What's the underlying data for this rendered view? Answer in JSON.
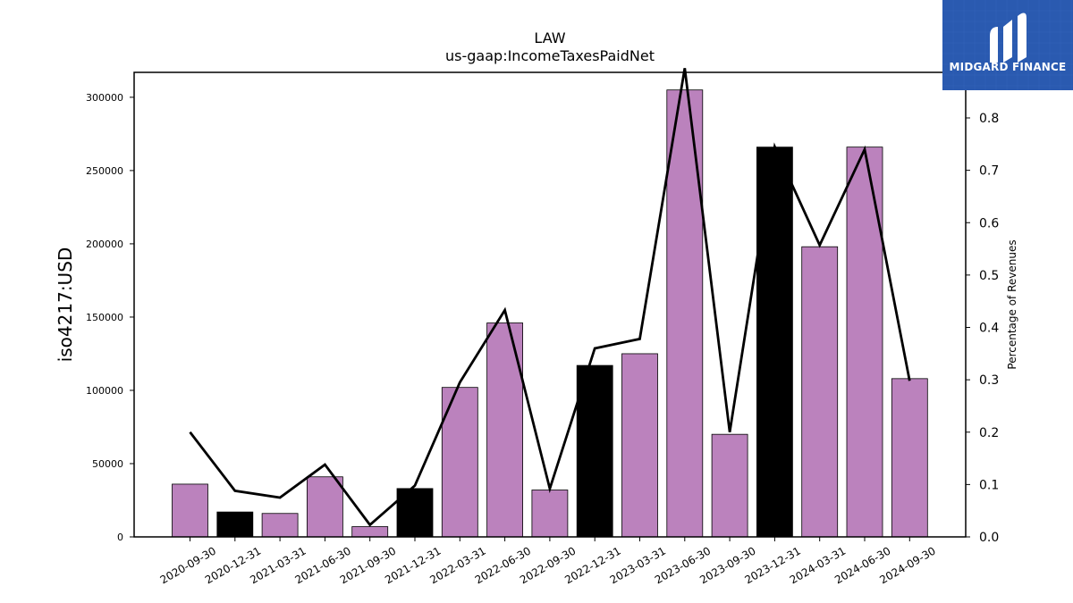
{
  "chart_data": {
    "type": "bar",
    "title": "LAW",
    "subtitle": "us-gaap:IncomeTaxesPaidNet",
    "ylabel": "iso4217:USD",
    "y2label": "Percentage of Revenues",
    "ylim": [
      0,
      317000
    ],
    "y2lim": [
      0,
      0.887
    ],
    "yticks": [
      0,
      50000,
      100000,
      150000,
      200000,
      250000,
      300000
    ],
    "y2ticks": [
      "0.0",
      "0.1",
      "0.2",
      "0.3",
      "0.4",
      "0.5",
      "0.6",
      "0.7",
      "0.8"
    ],
    "categories": [
      "2020-09-30",
      "2020-12-31",
      "2021-03-31",
      "2021-06-30",
      "2021-09-30",
      "2021-12-31",
      "2022-03-31",
      "2022-06-30",
      "2022-09-30",
      "2022-12-31",
      "2023-03-31",
      "2023-06-30",
      "2023-09-30",
      "2023-12-31",
      "2024-03-31",
      "2024-06-30",
      "2024-09-30"
    ],
    "series": [
      {
        "type": "bar",
        "values": [
          36000,
          17000,
          16000,
          41000,
          7000,
          33000,
          102000,
          146000,
          32000,
          117000,
          125000,
          305000,
          70000,
          266000,
          198000,
          266000,
          108000
        ],
        "colors": [
          "#bb82bd",
          "#000000",
          "#bb82bd",
          "#bb82bd",
          "#bb82bd",
          "#000000",
          "#bb82bd",
          "#bb82bd",
          "#bb82bd",
          "#000000",
          "#bb82bd",
          "#bb82bd",
          "#bb82bd",
          "#000000",
          "#bb82bd",
          "#bb82bd",
          "#bb82bd"
        ]
      },
      {
        "type": "line",
        "axis": "right",
        "color": "#000000",
        "values": [
          0.2,
          0.088,
          0.075,
          0.138,
          0.023,
          0.098,
          0.295,
          0.433,
          0.092,
          0.36,
          0.378,
          0.895,
          0.2,
          0.745,
          0.557,
          0.74,
          0.298
        ]
      }
    ],
    "grid": false,
    "legend": "none"
  },
  "logo": {
    "text": "MIDGARD FINANCE",
    "background": "#2a5ab0"
  }
}
